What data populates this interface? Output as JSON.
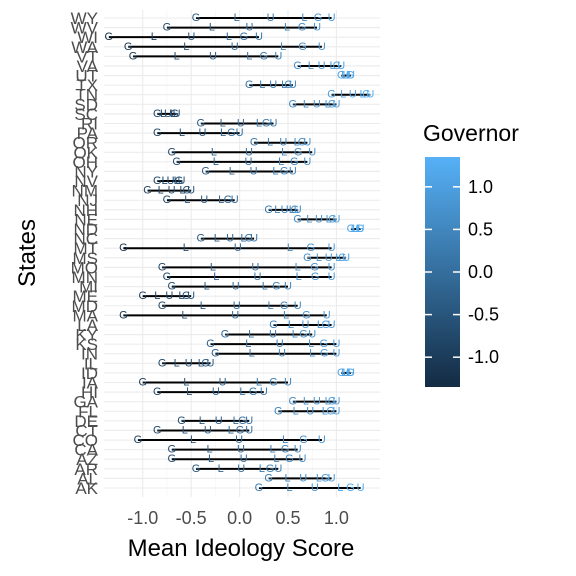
{
  "chart_data": {
    "type": "scatter",
    "xlabel": "Mean Ideology Score",
    "ylabel": "States",
    "xlim": [
      -1.4,
      1.45
    ],
    "x_ticks": [
      -1.0,
      -0.5,
      0.0,
      0.5,
      1.0
    ],
    "x_tick_labels": [
      "-1.0",
      "-0.5",
      "0.0",
      "0.5",
      "1.0"
    ],
    "grid": true,
    "legend": {
      "title": "Governor",
      "position": "right",
      "type": "colorbar",
      "ticks": [
        1.0,
        0.5,
        0.0,
        -0.5,
        -1.0
      ],
      "tick_labels": [
        "1.0",
        "0.5",
        "0.0",
        "-0.5",
        "-1.0"
      ],
      "range": [
        -1.35,
        1.35
      ],
      "color_low": "#132B43",
      "color_high": "#56B1F7"
    },
    "states": [
      "AK",
      "AL",
      "AR",
      "AZ",
      "CA",
      "CO",
      "CT",
      "DE",
      "FL",
      "GA",
      "HI",
      "IA",
      "ID",
      "IL",
      "IN",
      "KS",
      "KY",
      "LA",
      "MA",
      "MD",
      "ME",
      "MI",
      "MN",
      "MO",
      "MS",
      "MT",
      "NC",
      "ND",
      "NE",
      "NH",
      "NJ",
      "NM",
      "NV",
      "NY",
      "OH",
      "OK",
      "OR",
      "PA",
      "RI",
      "SC",
      "SD",
      "TN",
      "TX",
      "UT",
      "VA",
      "VT",
      "WA",
      "WI",
      "WV",
      "WY"
    ],
    "state_labels_shown": [
      "AK",
      "AL",
      "AR",
      "AZ",
      "CA",
      "CO",
      "CT",
      "DE",
      "FL",
      "GA",
      "HI",
      "IA",
      "ID",
      "IL",
      "IN",
      "KS",
      "KY",
      "LA",
      "MA",
      "MD",
      "ME",
      "MI",
      "MN",
      "MO",
      "MS",
      "MT",
      "NC",
      "ND",
      "NE",
      "NH",
      "NJ",
      "NM",
      "NV",
      "NY",
      "OH",
      "OK",
      "OR",
      "PA",
      "RI",
      "SC",
      "SD",
      "TN",
      "TX",
      "UT",
      "VA",
      "VT",
      "WA",
      "WI",
      "WV",
      "WY"
    ],
    "ranges": [
      {
        "state": "AK",
        "min": 0.2,
        "max": 1.25
      },
      {
        "state": "AL",
        "min": 0.3,
        "max": 0.95
      },
      {
        "state": "AR",
        "min": -0.45,
        "max": 0.4
      },
      {
        "state": "AZ",
        "min": -0.7,
        "max": 0.65
      },
      {
        "state": "CA",
        "min": -0.7,
        "max": 0.6
      },
      {
        "state": "CO",
        "min": -1.05,
        "max": 0.85
      },
      {
        "state": "CT",
        "min": -0.85,
        "max": 0.1
      },
      {
        "state": "DE",
        "min": -0.6,
        "max": 0.1
      },
      {
        "state": "FL",
        "min": 0.4,
        "max": 1.0
      },
      {
        "state": "GA",
        "min": 0.55,
        "max": 1.0
      },
      {
        "state": "HI",
        "min": -0.85,
        "max": 0.25
      },
      {
        "state": "IA",
        "min": -1.0,
        "max": 0.5
      },
      {
        "state": "ID",
        "min": 1.05,
        "max": 1.15
      },
      {
        "state": "IL",
        "min": -0.8,
        "max": -0.3
      },
      {
        "state": "IN",
        "min": -0.25,
        "max": 1.0
      },
      {
        "state": "KS",
        "min": -0.3,
        "max": 1.0
      },
      {
        "state": "KY",
        "min": -0.15,
        "max": 0.75
      },
      {
        "state": "LA",
        "min": 0.35,
        "max": 0.95
      },
      {
        "state": "MA",
        "min": -1.2,
        "max": 0.9
      },
      {
        "state": "MD",
        "min": -0.8,
        "max": 0.6
      },
      {
        "state": "ME",
        "min": -1.0,
        "max": -0.5
      },
      {
        "state": "MI",
        "min": -0.7,
        "max": 0.5
      },
      {
        "state": "MN",
        "min": -0.75,
        "max": 0.95
      },
      {
        "state": "MO",
        "min": -0.8,
        "max": 0.95
      },
      {
        "state": "MS",
        "min": 0.7,
        "max": 1.1
      },
      {
        "state": "MT",
        "min": -1.2,
        "max": 0.95
      },
      {
        "state": "NC",
        "min": -0.4,
        "max": 0.15
      },
      {
        "state": "ND",
        "min": 1.15,
        "max": 1.25
      },
      {
        "state": "NE",
        "min": 0.6,
        "max": 1.0
      },
      {
        "state": "NH",
        "min": 0.3,
        "max": 0.6
      },
      {
        "state": "NJ",
        "min": -0.75,
        "max": -0.05
      },
      {
        "state": "NM",
        "min": -0.95,
        "max": -0.5
      },
      {
        "state": "NV",
        "min": -0.85,
        "max": -0.6
      },
      {
        "state": "NY",
        "min": -0.35,
        "max": 0.55
      },
      {
        "state": "OH",
        "min": -0.65,
        "max": 0.7
      },
      {
        "state": "OK",
        "min": -0.7,
        "max": 0.75
      },
      {
        "state": "OR",
        "min": 0.15,
        "max": 0.7
      },
      {
        "state": "PA",
        "min": -0.85,
        "max": 0.0
      },
      {
        "state": "RI",
        "min": -0.4,
        "max": 0.35
      },
      {
        "state": "SC",
        "min": -0.85,
        "max": -0.65
      },
      {
        "state": "SD",
        "min": 0.55,
        "max": 1.0
      },
      {
        "state": "TN",
        "min": 0.95,
        "max": 1.35
      },
      {
        "state": "TX",
        "min": 0.1,
        "max": 0.55
      },
      {
        "state": "UT",
        "min": 1.05,
        "max": 1.15
      },
      {
        "state": "VA",
        "min": 0.6,
        "max": 1.05
      },
      {
        "state": "VT",
        "min": -1.1,
        "max": 0.4
      },
      {
        "state": "WA",
        "min": -1.15,
        "max": 0.85
      },
      {
        "state": "WI",
        "min": -1.35,
        "max": 0.2
      },
      {
        "state": "WV",
        "min": -0.75,
        "max": 0.8
      },
      {
        "state": "WY",
        "min": -0.45,
        "max": 0.95
      }
    ]
  }
}
